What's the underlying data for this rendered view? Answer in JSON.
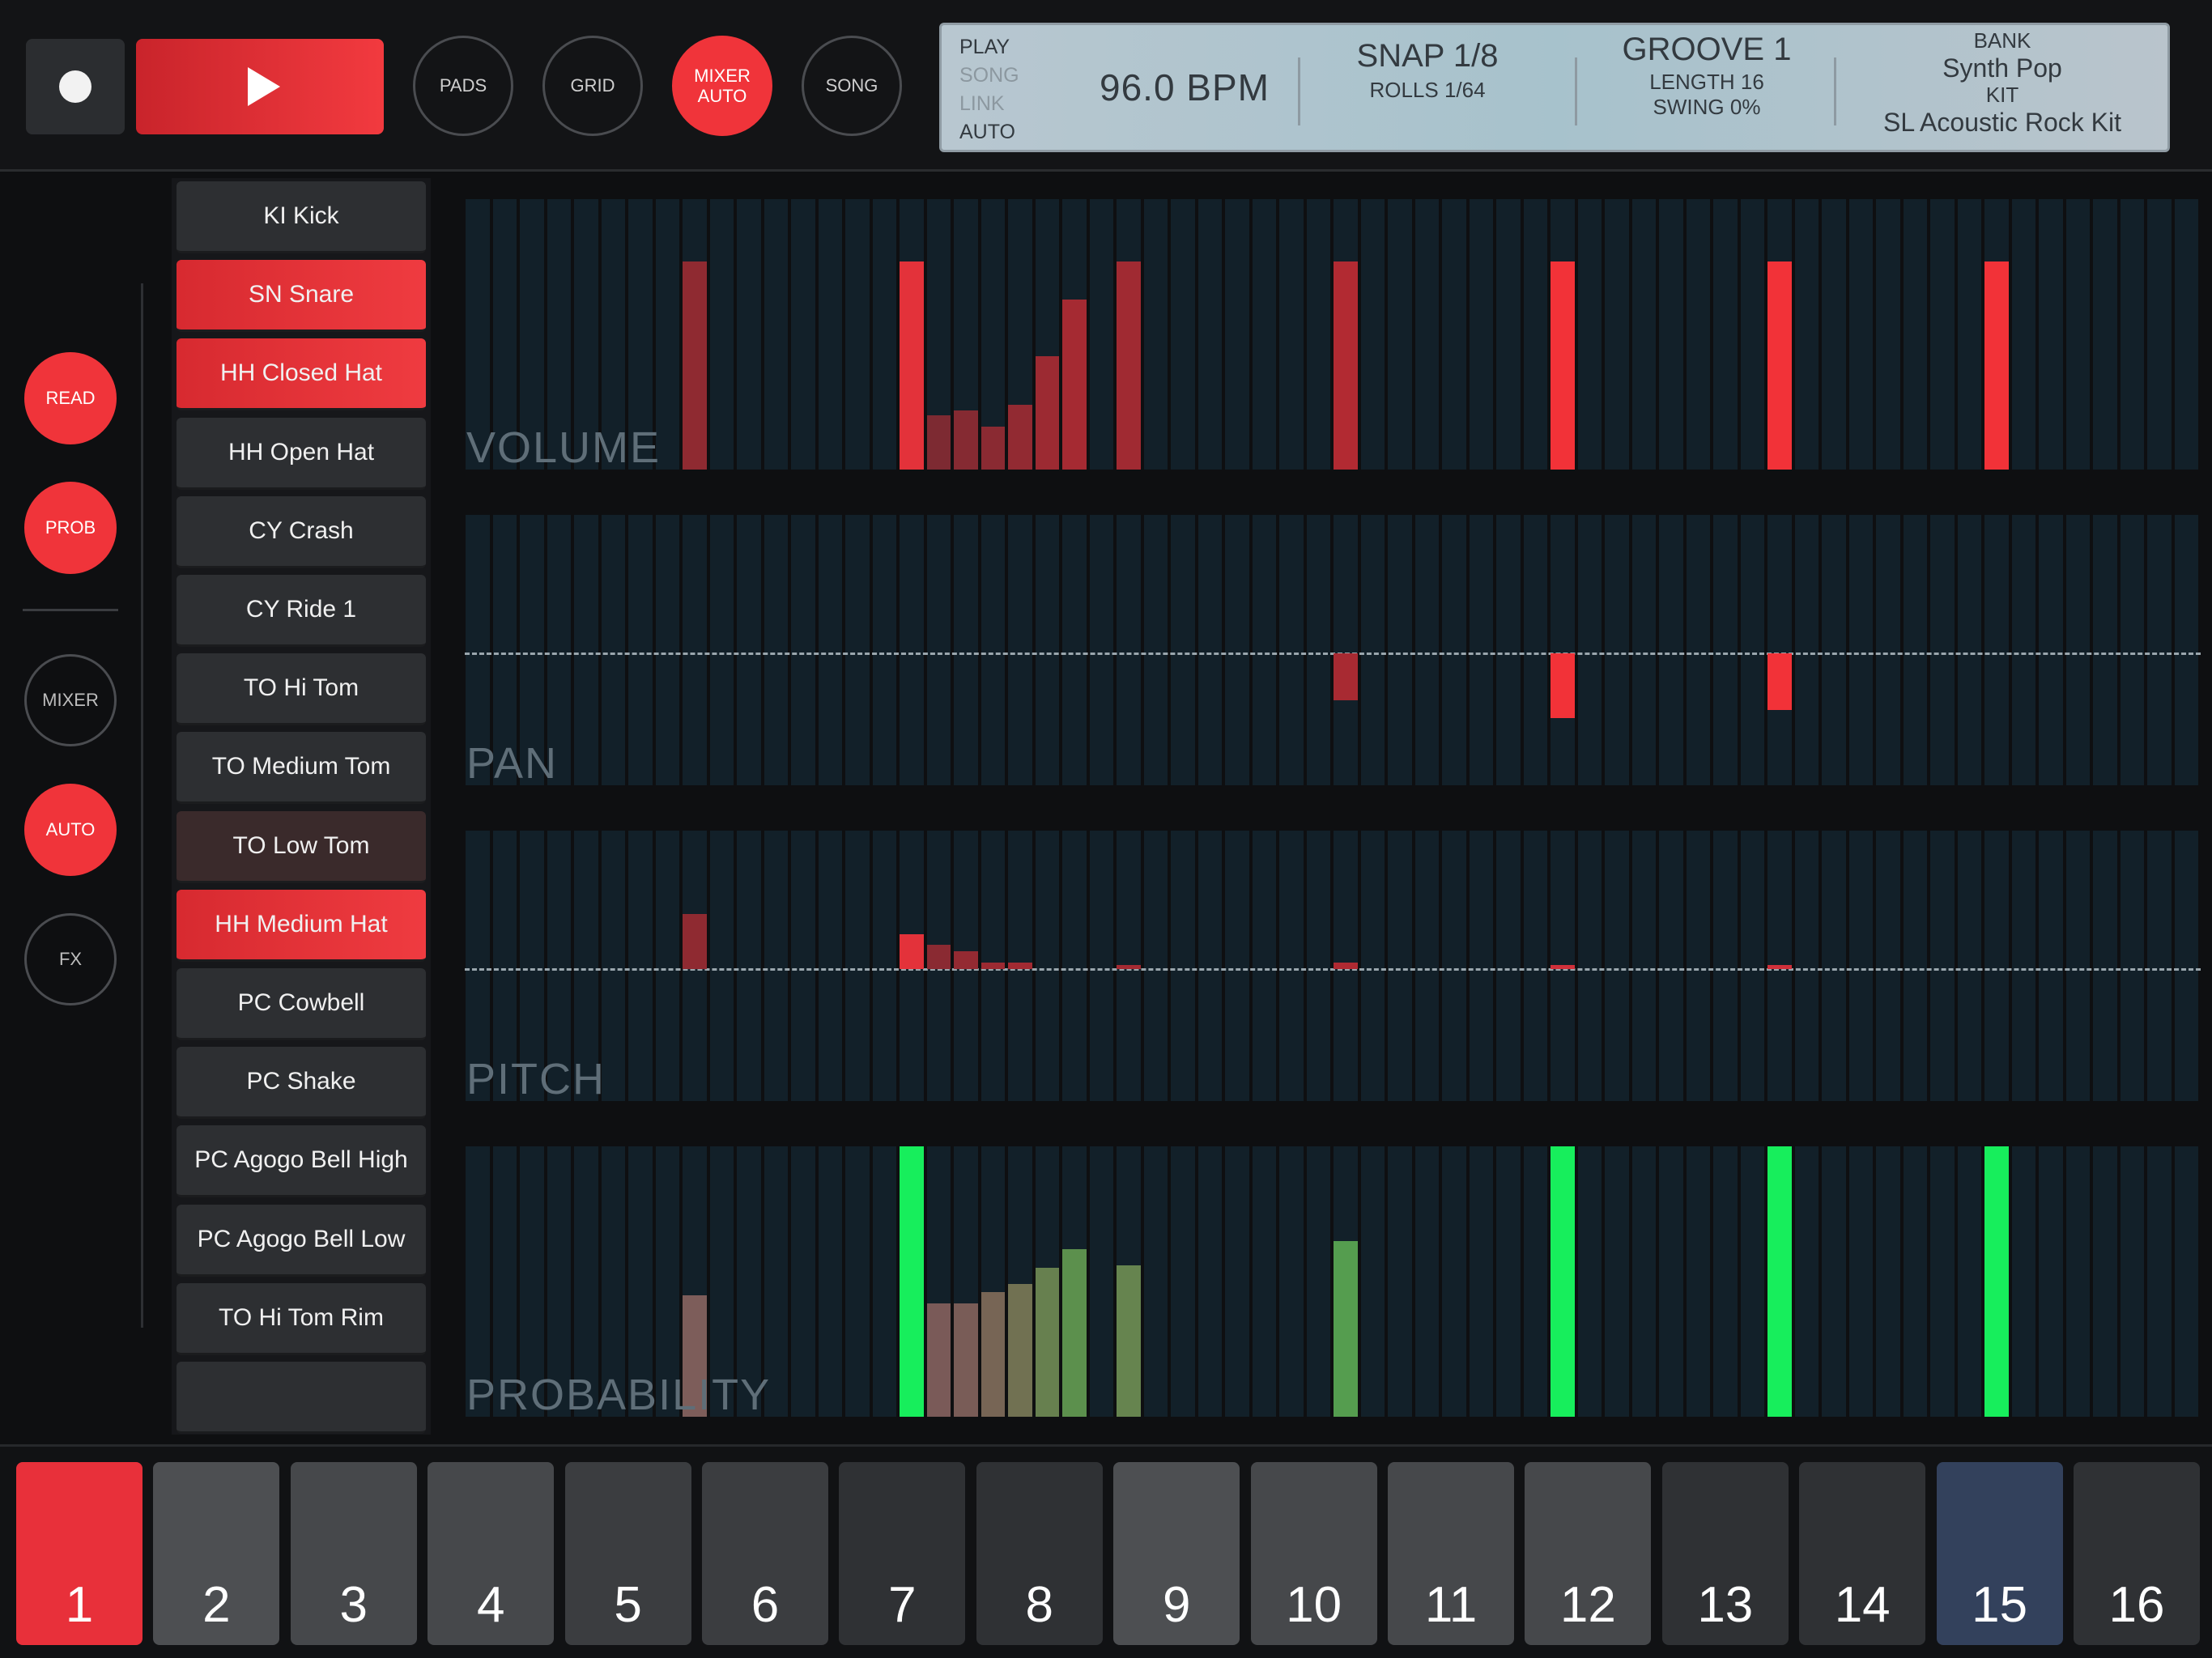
{
  "transport": {
    "record_label": "",
    "play_label": ""
  },
  "modes": [
    {
      "label": "PADS",
      "active": false
    },
    {
      "label": "GRID",
      "active": false
    },
    {
      "label": "MIXER\nAUTO",
      "active": true
    },
    {
      "label": "SONG",
      "active": false
    }
  ],
  "lcd": {
    "status": [
      {
        "label": "PLAY",
        "active": true
      },
      {
        "label": "SONG",
        "active": false
      },
      {
        "label": "LINK",
        "active": false
      },
      {
        "label": "AUTO",
        "active": true
      }
    ],
    "bpm": "96.0 BPM",
    "snap": "SNAP 1/8",
    "rolls": "ROLLS 1/64",
    "groove": "GROOVE 1",
    "length": "LENGTH 16",
    "swing": "SWING 0%",
    "bank_label": "BANK",
    "bank_value": "Synth Pop",
    "kit_label": "KIT",
    "kit_value": "SL Acoustic Rock Kit"
  },
  "side_buttons": [
    {
      "label": "READ",
      "active": true
    },
    {
      "label": "PROB",
      "active": true
    },
    {
      "label": "MIXER",
      "active": false
    },
    {
      "label": "AUTO",
      "active": true
    },
    {
      "label": "FX",
      "active": false
    }
  ],
  "instruments": [
    {
      "label": "KI Kick",
      "state": "normal"
    },
    {
      "label": "SN Snare",
      "state": "selected"
    },
    {
      "label": "HH Closed Hat",
      "state": "selected"
    },
    {
      "label": "HH Open Hat",
      "state": "normal"
    },
    {
      "label": "CY Crash",
      "state": "normal"
    },
    {
      "label": "CY Ride 1",
      "state": "normal"
    },
    {
      "label": "TO Hi Tom",
      "state": "normal"
    },
    {
      "label": "TO Medium Tom",
      "state": "normal"
    },
    {
      "label": "TO Low Tom",
      "state": "dim"
    },
    {
      "label": "HH Medium Hat",
      "state": "selected"
    },
    {
      "label": "PC Cowbell",
      "state": "normal"
    },
    {
      "label": "PC Shake",
      "state": "normal"
    },
    {
      "label": "PC Agogo Bell High",
      "state": "normal"
    },
    {
      "label": "PC Agogo Bell Low",
      "state": "normal"
    },
    {
      "label": "TO Hi Tom Rim",
      "state": "normal"
    },
    {
      "label": "",
      "state": "normal"
    }
  ],
  "automation": {
    "steps": 64,
    "lanes": [
      {
        "label": "VOLUME",
        "mode": "unipolar",
        "values": [
          {
            "step": 8,
            "value": 0.77,
            "color": "#8f2a31"
          },
          {
            "step": 16,
            "value": 0.77,
            "color": "#e3323a"
          },
          {
            "step": 17,
            "value": 0.2,
            "color": "#7d2a32"
          },
          {
            "step": 18,
            "value": 0.22,
            "color": "#852a32"
          },
          {
            "step": 19,
            "value": 0.16,
            "color": "#8a2a32"
          },
          {
            "step": 20,
            "value": 0.24,
            "color": "#922a32"
          },
          {
            "step": 21,
            "value": 0.42,
            "color": "#9c2a32"
          },
          {
            "step": 22,
            "value": 0.63,
            "color": "#a52a32"
          },
          {
            "step": 24,
            "value": 0.77,
            "color": "#a02a32"
          },
          {
            "step": 32,
            "value": 0.77,
            "color": "#b22a32"
          },
          {
            "step": 40,
            "value": 0.77,
            "color": "#f23238"
          },
          {
            "step": 48,
            "value": 0.77,
            "color": "#f23238"
          },
          {
            "step": 56,
            "value": 0.77,
            "color": "#f23238"
          }
        ]
      },
      {
        "label": "PAN",
        "mode": "bipolar",
        "values": [
          {
            "step": 32,
            "value": -0.35,
            "color": "#a82a32"
          },
          {
            "step": 40,
            "value": -0.48,
            "color": "#f23238"
          },
          {
            "step": 48,
            "value": -0.42,
            "color": "#f23238"
          }
        ]
      },
      {
        "label": "PITCH",
        "mode": "bipolar",
        "values": [
          {
            "step": 8,
            "value": 0.41,
            "color": "#8f2a31"
          },
          {
            "step": 16,
            "value": 0.26,
            "color": "#e3323a"
          },
          {
            "step": 17,
            "value": 0.18,
            "color": "#8a2a32"
          },
          {
            "step": 18,
            "value": 0.13,
            "color": "#942a32"
          },
          {
            "step": 19,
            "value": 0.05,
            "color": "#9c2a32"
          },
          {
            "step": 20,
            "value": 0.05,
            "color": "#a22a32"
          },
          {
            "step": 24,
            "value": 0.03,
            "color": "#a52a32"
          },
          {
            "step": 32,
            "value": 0.05,
            "color": "#b02a32"
          },
          {
            "step": 40,
            "value": 0.01,
            "color": "#d0303a"
          },
          {
            "step": 48,
            "value": 0.01,
            "color": "#d0303a"
          }
        ]
      },
      {
        "label": "PROBABILITY",
        "mode": "unipolar",
        "values": [
          {
            "step": 8,
            "value": 0.45,
            "color": "#7d5d5a"
          },
          {
            "step": 16,
            "value": 1.0,
            "color": "#17ee5c"
          },
          {
            "step": 17,
            "value": 0.42,
            "color": "#7a5a58"
          },
          {
            "step": 18,
            "value": 0.42,
            "color": "#795c57"
          },
          {
            "step": 19,
            "value": 0.46,
            "color": "#776555"
          },
          {
            "step": 20,
            "value": 0.49,
            "color": "#717152"
          },
          {
            "step": 21,
            "value": 0.55,
            "color": "#67804f"
          },
          {
            "step": 22,
            "value": 0.62,
            "color": "#5c904d"
          },
          {
            "step": 24,
            "value": 0.56,
            "color": "#66844f"
          },
          {
            "step": 32,
            "value": 0.65,
            "color": "#559d4f"
          },
          {
            "step": 40,
            "value": 1.0,
            "color": "#17ee5c"
          },
          {
            "step": 48,
            "value": 1.0,
            "color": "#17ee5c"
          },
          {
            "step": 56,
            "value": 1.0,
            "color": "#17ee5c"
          }
        ]
      }
    ]
  },
  "pads": [
    {
      "label": "1",
      "color": "#e8303a"
    },
    {
      "label": "2",
      "color": "#4d4f52"
    },
    {
      "label": "3",
      "color": "#46484b"
    },
    {
      "label": "4",
      "color": "#46484b"
    },
    {
      "label": "5",
      "color": "#3b3d40"
    },
    {
      "label": "6",
      "color": "#3b3d40"
    },
    {
      "label": "7",
      "color": "#2f3134"
    },
    {
      "label": "8",
      "color": "#2f3134"
    },
    {
      "label": "9",
      "color": "#4d4f52"
    },
    {
      "label": "10",
      "color": "#46484b"
    },
    {
      "label": "11",
      "color": "#46484b"
    },
    {
      "label": "12",
      "color": "#46484b"
    },
    {
      "label": "13",
      "color": "#2f3134"
    },
    {
      "label": "14",
      "color": "#2f3134"
    },
    {
      "label": "15",
      "color": "#33415c"
    },
    {
      "label": "16",
      "color": "#2f3134"
    }
  ]
}
